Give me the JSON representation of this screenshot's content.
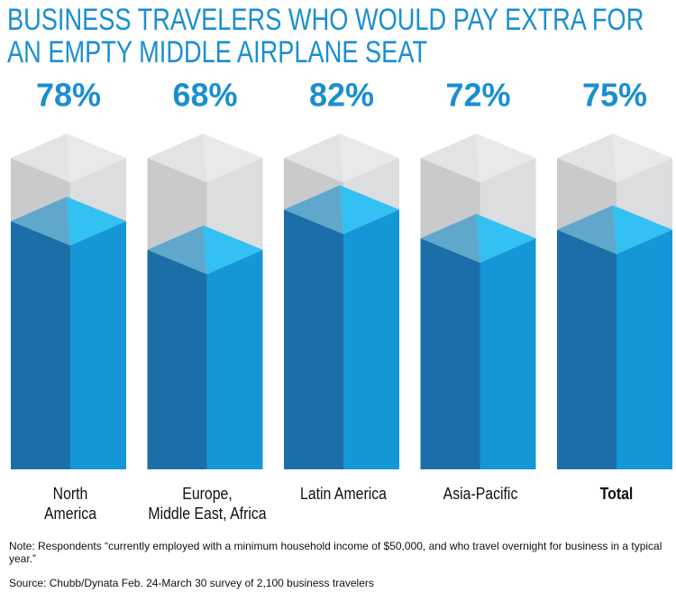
{
  "chart_data": {
    "type": "bar3d",
    "title": "BUSINESS TRAVELERS WHO WOULD PAY EXTRA FOR AN EMPTY MIDDLE AIRPLANE SEAT",
    "categories": [
      "North\nAmerica",
      "Europe,\nMiddle East, Africa",
      "Latin America",
      "Asia-Pacific",
      "Total"
    ],
    "values": [
      78,
      68,
      82,
      72,
      75
    ],
    "value_labels": [
      "78%",
      "68%",
      "82%",
      "72%",
      "75%"
    ],
    "ylim": [
      0,
      100
    ],
    "color": "#1596d6",
    "note": "Note: Respondents “currently employed with a minimum household income of $50,000, and who travel overnight for business in a typical year.”",
    "source": "Source: Chubb/Dynata Feb. 24-March 30 survey of 2,100 business travelers"
  }
}
